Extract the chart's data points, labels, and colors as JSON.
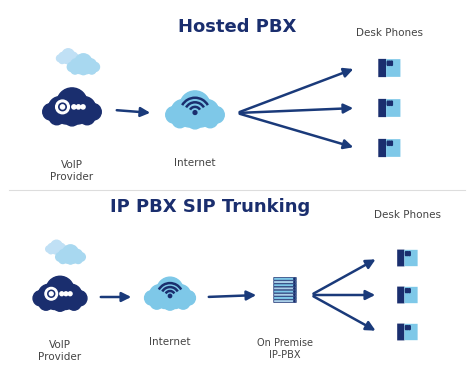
{
  "title1": "Hosted PBX",
  "title2": "IP PBX SIP Trunking",
  "label_voip": "VoIP\nProvider",
  "label_internet": "Internet",
  "label_desk": "Desk Phones",
  "label_premise": "On Premise\nIP-PBX",
  "bg_color": "#ffffff",
  "dark_blue": "#1a2e6e",
  "light_blue": "#7ec8e8",
  "light_blue2": "#a8d8ee",
  "arrow_color": "#1a3a7a",
  "title_color": "#1a2e6e",
  "label_color": "#444444"
}
